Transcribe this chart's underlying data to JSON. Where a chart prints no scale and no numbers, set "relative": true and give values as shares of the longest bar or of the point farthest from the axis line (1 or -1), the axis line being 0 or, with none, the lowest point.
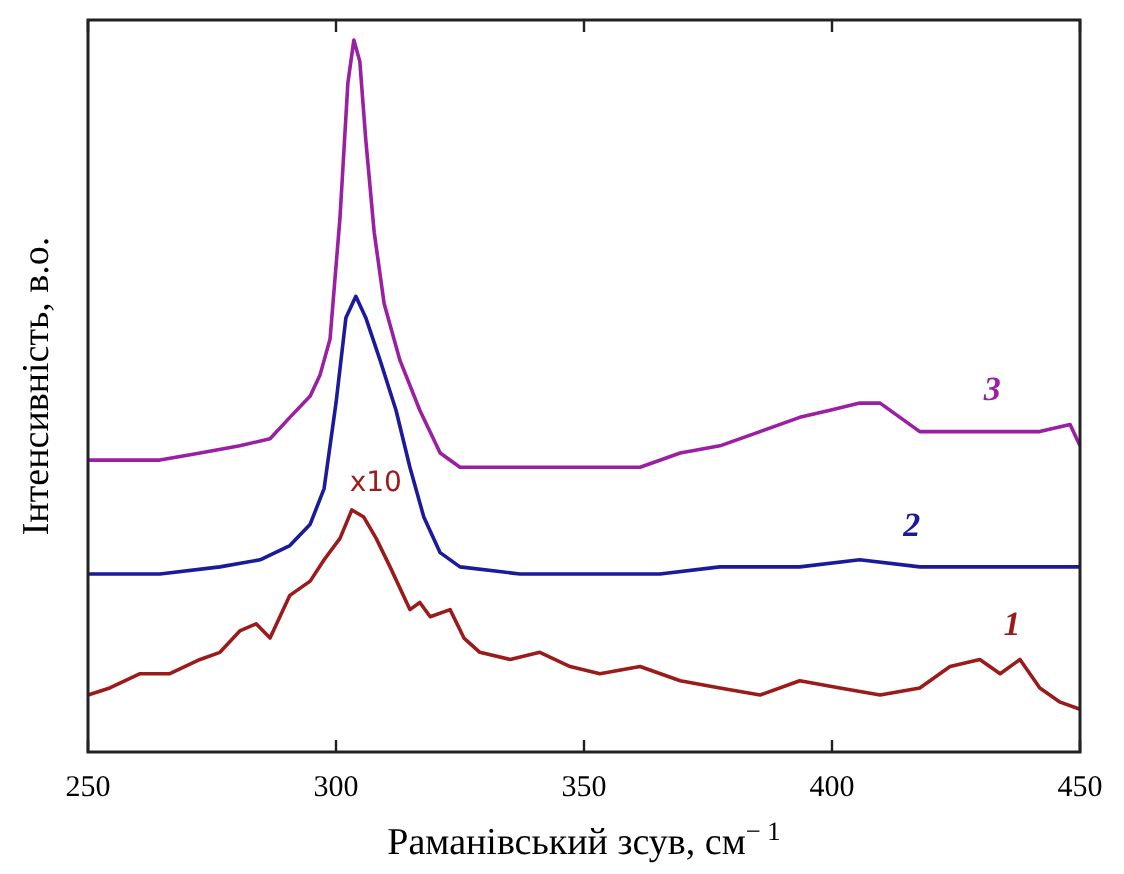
{
  "chart_data": {
    "type": "line",
    "xlabel": "Раманівський зсув, см$^{− 1}$",
    "ylabel": "Інтенсивність, в.о.",
    "relative": true,
    "xlim": [
      250,
      450
    ],
    "xticks": [
      250,
      300,
      350,
      400,
      450
    ],
    "grid": false,
    "legend": false,
    "annotations": [
      {
        "text": "x10",
        "x": 304,
        "y": 0.35
      }
    ],
    "series": [
      {
        "name": "1",
        "color": "#9b1b1b",
        "x": [
          250,
          254.4,
          260.5,
          266.5,
          272.6,
          276.6,
          280.6,
          283.9,
          286.7,
          290.7,
          294.8,
          297.6,
          300.8,
          303.2,
          305.6,
          308.1,
          310.9,
          314.9,
          316.9,
          319,
          323,
          325.8,
          329,
          335.1,
          341.1,
          347.2,
          353.2,
          361.3,
          369.4,
          377.4,
          385.5,
          393.5,
          401.6,
          409.7,
          417.7,
          423.8,
          429.8,
          433.9,
          437.9,
          441.9,
          446,
          450
        ],
        "values": [
          0.08,
          0.09,
          0.11,
          0.11,
          0.13,
          0.14,
          0.17,
          0.18,
          0.16,
          0.22,
          0.24,
          0.27,
          0.3,
          0.34,
          0.33,
          0.3,
          0.26,
          0.2,
          0.21,
          0.19,
          0.2,
          0.16,
          0.14,
          0.13,
          0.14,
          0.12,
          0.11,
          0.12,
          0.1,
          0.09,
          0.08,
          0.1,
          0.09,
          0.08,
          0.09,
          0.12,
          0.13,
          0.11,
          0.13,
          0.09,
          0.07,
          0.06
        ]
      },
      {
        "name": "2",
        "color": "#1a1a9a",
        "x": [
          250,
          264.5,
          276.6,
          284.7,
          290.7,
          294.8,
          297.6,
          300,
          302,
          304,
          306,
          308.9,
          312.1,
          314.9,
          317.7,
          321,
          325,
          337.1,
          353.2,
          365.3,
          377.4,
          393.5,
          405.6,
          417.7,
          429.8,
          441.9,
          450
        ],
        "values": [
          0.25,
          0.25,
          0.26,
          0.27,
          0.29,
          0.32,
          0.37,
          0.49,
          0.61,
          0.64,
          0.61,
          0.55,
          0.48,
          0.4,
          0.33,
          0.28,
          0.26,
          0.25,
          0.25,
          0.25,
          0.26,
          0.26,
          0.27,
          0.26,
          0.26,
          0.26,
          0.26
        ]
      },
      {
        "name": "3",
        "color": "#9b1fa3",
        "x": [
          250,
          256.5,
          264.5,
          272.6,
          280.6,
          286.7,
          290.7,
          294.8,
          296.8,
          298.8,
          300.8,
          302.4,
          303.6,
          304.8,
          306,
          307.7,
          309.7,
          312.9,
          316.9,
          321,
          325,
          333.1,
          345.2,
          353.2,
          361.3,
          369.4,
          377.4,
          385.5,
          393.5,
          399.6,
          405.6,
          409.7,
          413.7,
          417.7,
          425.8,
          433.9,
          441.9,
          448,
          450
        ],
        "values": [
          0.41,
          0.41,
          0.41,
          0.42,
          0.43,
          0.44,
          0.47,
          0.5,
          0.53,
          0.58,
          0.75,
          0.94,
          1,
          0.97,
          0.86,
          0.73,
          0.63,
          0.55,
          0.48,
          0.42,
          0.4,
          0.4,
          0.4,
          0.4,
          0.4,
          0.42,
          0.43,
          0.45,
          0.47,
          0.48,
          0.49,
          0.49,
          0.47,
          0.45,
          0.45,
          0.45,
          0.45,
          0.46,
          0.43
        ]
      }
    ]
  }
}
